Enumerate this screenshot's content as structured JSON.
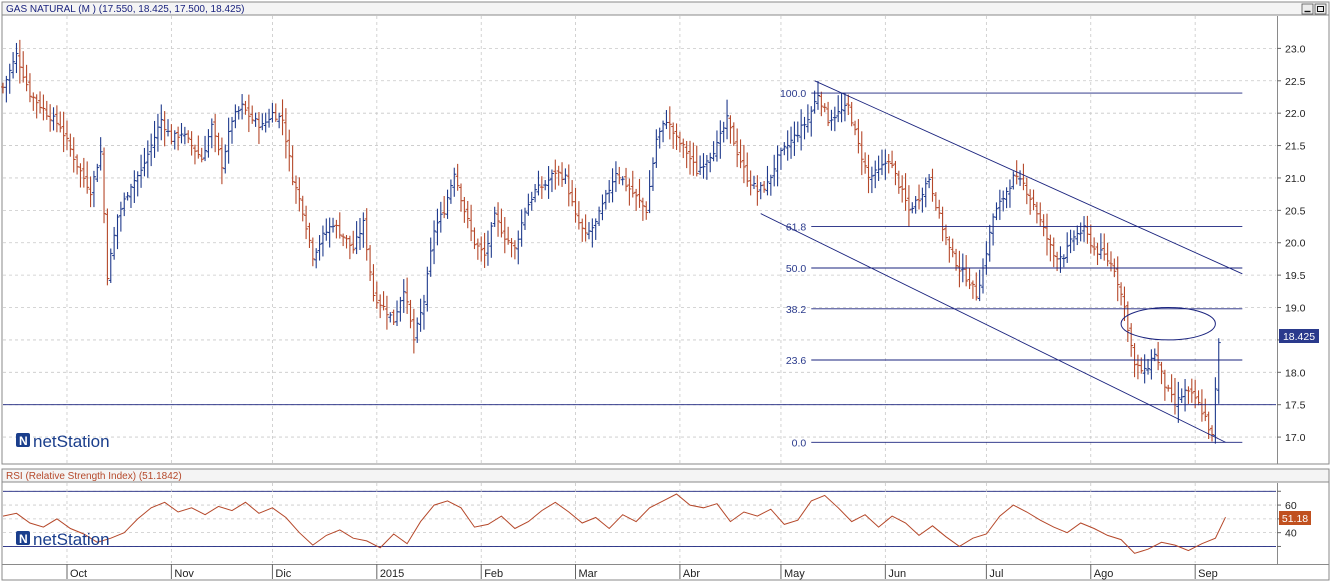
{
  "colors": {
    "bar_up": "#1f3a8c",
    "bar_down": "#b5482a",
    "line": "#1a237e",
    "rsi_line": "#b5482a",
    "grid": "#c8c8c8",
    "frame": "#888888",
    "price_label_bg": "#2a3a8c",
    "rsi_label_bg": "#c0501f"
  },
  "main_panel": {
    "title": "GAS NATURAL (M ) (17.550, 18.425, 17.500, 18.425)",
    "last_price_label": "18.425",
    "watermark": "netStation",
    "controls": {
      "minimize_icon": "minimize-icon",
      "restore_icon": "restore-icon"
    }
  },
  "rsi_panel": {
    "title": "RSI (Relative Strength Index) (51.1842)",
    "last_value_label": "51.18",
    "watermark": "netStation"
  },
  "x_axis": {
    "months": [
      {
        "label": "Oct",
        "day": 19
      },
      {
        "label": "Nov",
        "day": 50
      },
      {
        "label": "Dic",
        "day": 80
      },
      {
        "label": "2015",
        "day": 111
      },
      {
        "label": "Feb",
        "day": 142
      },
      {
        "label": "Mar",
        "day": 170
      },
      {
        "label": "Abr",
        "day": 201
      },
      {
        "label": "May",
        "day": 231
      },
      {
        "label": "Jun",
        "day": 262
      },
      {
        "label": "Jul",
        "day": 292
      },
      {
        "label": "Ago",
        "day": 323
      },
      {
        "label": "Sep",
        "day": 354
      }
    ],
    "day_range": [
      0,
      378
    ]
  },
  "chart_data": [
    {
      "type": "ohlc",
      "ylim": [
        16.6,
        23.5
      ],
      "y_ticks": [
        17.0,
        17.5,
        18.0,
        18.5,
        19.0,
        19.5,
        20.0,
        20.5,
        21.0,
        21.5,
        22.0,
        22.5,
        23.0
      ],
      "y_tick_labels": [
        "17.0",
        "17.5",
        "18.0",
        "",
        "19.0",
        "19.5",
        "20.0",
        "20.5",
        "21.0",
        "21.5",
        "22.0",
        "22.5",
        "23.0"
      ],
      "close_path": [
        [
          0,
          22.4
        ],
        [
          4,
          22.9
        ],
        [
          8,
          22.3
        ],
        [
          13,
          22.0
        ],
        [
          17,
          21.8
        ],
        [
          22,
          21.2
        ],
        [
          26,
          20.8
        ],
        [
          29,
          21.4
        ],
        [
          31,
          19.5
        ],
        [
          34,
          20.4
        ],
        [
          38,
          20.9
        ],
        [
          41,
          21.1
        ],
        [
          44,
          21.5
        ],
        [
          47,
          21.9
        ],
        [
          50,
          21.6
        ],
        [
          53,
          21.7
        ],
        [
          56,
          21.5
        ],
        [
          59,
          21.3
        ],
        [
          62,
          21.8
        ],
        [
          65,
          21.2
        ],
        [
          68,
          21.9
        ],
        [
          71,
          22.1
        ],
        [
          74,
          21.9
        ],
        [
          77,
          21.8
        ],
        [
          80,
          22.0
        ],
        [
          83,
          21.9
        ],
        [
          86,
          21.0
        ],
        [
          89,
          20.5
        ],
        [
          92,
          19.8
        ],
        [
          95,
          20.1
        ],
        [
          98,
          20.3
        ],
        [
          101,
          20.1
        ],
        [
          104,
          19.9
        ],
        [
          107,
          20.3
        ],
        [
          110,
          19.2
        ],
        [
          113,
          19.0
        ],
        [
          116,
          18.8
        ],
        [
          119,
          19.3
        ],
        [
          122,
          18.5
        ],
        [
          125,
          19.1
        ],
        [
          128,
          20.2
        ],
        [
          131,
          20.5
        ],
        [
          134,
          21.1
        ],
        [
          137,
          20.5
        ],
        [
          140,
          20.0
        ],
        [
          143,
          19.8
        ],
        [
          146,
          20.4
        ],
        [
          149,
          20.1
        ],
        [
          152,
          19.9
        ],
        [
          155,
          20.5
        ],
        [
          158,
          20.8
        ],
        [
          161,
          20.9
        ],
        [
          164,
          21.1
        ],
        [
          167,
          21.0
        ],
        [
          170,
          20.4
        ],
        [
          173,
          20.1
        ],
        [
          176,
          20.3
        ],
        [
          179,
          20.7
        ],
        [
          182,
          21.1
        ],
        [
          185,
          20.9
        ],
        [
          188,
          20.7
        ],
        [
          191,
          20.5
        ],
        [
          194,
          21.6
        ],
        [
          197,
          21.9
        ],
        [
          200,
          21.6
        ],
        [
          203,
          21.4
        ],
        [
          206,
          21.1
        ],
        [
          209,
          21.3
        ],
        [
          212,
          21.5
        ],
        [
          215,
          21.9
        ],
        [
          218,
          21.4
        ],
        [
          221,
          21.0
        ],
        [
          224,
          20.8
        ],
        [
          227,
          20.9
        ],
        [
          230,
          21.3
        ],
        [
          233,
          21.5
        ],
        [
          236,
          21.7
        ],
        [
          239,
          21.9
        ],
        [
          242,
          22.3
        ],
        [
          245,
          21.9
        ],
        [
          248,
          22.0
        ],
        [
          251,
          22.1
        ],
        [
          254,
          21.5
        ],
        [
          257,
          21.0
        ],
        [
          260,
          21.1
        ],
        [
          263,
          21.3
        ],
        [
          266,
          20.9
        ],
        [
          269,
          20.5
        ],
        [
          272,
          20.7
        ],
        [
          275,
          21.0
        ],
        [
          278,
          20.4
        ],
        [
          281,
          19.9
        ],
        [
          284,
          19.6
        ],
        [
          287,
          19.4
        ],
        [
          289,
          19.2
        ],
        [
          291,
          19.6
        ],
        [
          294,
          20.4
        ],
        [
          297,
          20.7
        ],
        [
          300,
          21.0
        ],
        [
          303,
          20.9
        ],
        [
          306,
          20.6
        ],
        [
          309,
          20.2
        ],
        [
          312,
          19.8
        ],
        [
          315,
          19.8
        ],
        [
          318,
          20.1
        ],
        [
          321,
          20.2
        ],
        [
          324,
          19.9
        ],
        [
          327,
          19.8
        ],
        [
          330,
          19.6
        ],
        [
          333,
          19.0
        ],
        [
          336,
          18.1
        ],
        [
          339,
          18.0
        ],
        [
          342,
          18.3
        ],
        [
          345,
          17.8
        ],
        [
          348,
          17.5
        ],
        [
          351,
          17.7
        ],
        [
          354,
          17.6
        ],
        [
          357,
          17.3
        ],
        [
          359,
          17.0
        ],
        [
          361,
          18.425
        ]
      ],
      "fibonacci": {
        "x_range": [
          240,
          368
        ],
        "levels": [
          {
            "label": "100.0",
            "value": 22.31
          },
          {
            "label": "61.8",
            "value": 20.25
          },
          {
            "label": "50.0",
            "value": 19.61
          },
          {
            "label": "38.2",
            "value": 18.98
          },
          {
            "label": "23.6",
            "value": 18.19
          },
          {
            "label": "0.0",
            "value": 16.92
          }
        ]
      },
      "horizontal_support": {
        "value": 17.5
      },
      "channel_lines": [
        {
          "name": "upper",
          "x1": 241,
          "y1": 22.5,
          "x2": 368,
          "y2": 19.52
        },
        {
          "name": "lower",
          "x1": 225,
          "y1": 20.45,
          "x2": 363,
          "y2": 16.92
        }
      ],
      "gap_ellipse": {
        "x_center": 346,
        "y_center": 18.75,
        "x_radius": 14,
        "y_radius": 0.25
      }
    },
    {
      "type": "line",
      "ylim": [
        18,
        76
      ],
      "y_ticks": [
        30,
        40,
        50,
        60,
        70
      ],
      "y_tick_labels": [
        "",
        "40",
        "",
        "60",
        ""
      ],
      "reference_lines": [
        30,
        70
      ],
      "points": [
        [
          0,
          52
        ],
        [
          4,
          54
        ],
        [
          8,
          47
        ],
        [
          12,
          44
        ],
        [
          16,
          50
        ],
        [
          20,
          43
        ],
        [
          24,
          39
        ],
        [
          28,
          33
        ],
        [
          32,
          36
        ],
        [
          36,
          40
        ],
        [
          40,
          50
        ],
        [
          44,
          58
        ],
        [
          48,
          62
        ],
        [
          52,
          55
        ],
        [
          56,
          58
        ],
        [
          60,
          53
        ],
        [
          64,
          59
        ],
        [
          68,
          56
        ],
        [
          72,
          62
        ],
        [
          76,
          54
        ],
        [
          80,
          58
        ],
        [
          84,
          51
        ],
        [
          88,
          40
        ],
        [
          92,
          31
        ],
        [
          96,
          38
        ],
        [
          100,
          42
        ],
        [
          104,
          36
        ],
        [
          108,
          34
        ],
        [
          112,
          29
        ],
        [
          116,
          39
        ],
        [
          120,
          32
        ],
        [
          124,
          48
        ],
        [
          128,
          60
        ],
        [
          132,
          63
        ],
        [
          136,
          58
        ],
        [
          140,
          44
        ],
        [
          144,
          46
        ],
        [
          148,
          52
        ],
        [
          152,
          43
        ],
        [
          156,
          48
        ],
        [
          160,
          56
        ],
        [
          164,
          62
        ],
        [
          168,
          55
        ],
        [
          172,
          47
        ],
        [
          176,
          51
        ],
        [
          180,
          43
        ],
        [
          184,
          53
        ],
        [
          188,
          48
        ],
        [
          192,
          58
        ],
        [
          196,
          63
        ],
        [
          200,
          68
        ],
        [
          204,
          60
        ],
        [
          208,
          58
        ],
        [
          212,
          61
        ],
        [
          216,
          48
        ],
        [
          220,
          55
        ],
        [
          224,
          52
        ],
        [
          228,
          57
        ],
        [
          232,
          46
        ],
        [
          236,
          49
        ],
        [
          240,
          63
        ],
        [
          244,
          67
        ],
        [
          248,
          58
        ],
        [
          252,
          48
        ],
        [
          256,
          53
        ],
        [
          260,
          44
        ],
        [
          264,
          52
        ],
        [
          268,
          47
        ],
        [
          272,
          38
        ],
        [
          276,
          45
        ],
        [
          280,
          37
        ],
        [
          284,
          30
        ],
        [
          288,
          36
        ],
        [
          292,
          39
        ],
        [
          296,
          52
        ],
        [
          300,
          60
        ],
        [
          304,
          55
        ],
        [
          308,
          49
        ],
        [
          312,
          44
        ],
        [
          316,
          40
        ],
        [
          320,
          47
        ],
        [
          324,
          43
        ],
        [
          328,
          38
        ],
        [
          332,
          35
        ],
        [
          336,
          25
        ],
        [
          340,
          28
        ],
        [
          344,
          33
        ],
        [
          348,
          31
        ],
        [
          352,
          27
        ],
        [
          356,
          32
        ],
        [
          360,
          36
        ],
        [
          363,
          51.18
        ]
      ]
    }
  ]
}
